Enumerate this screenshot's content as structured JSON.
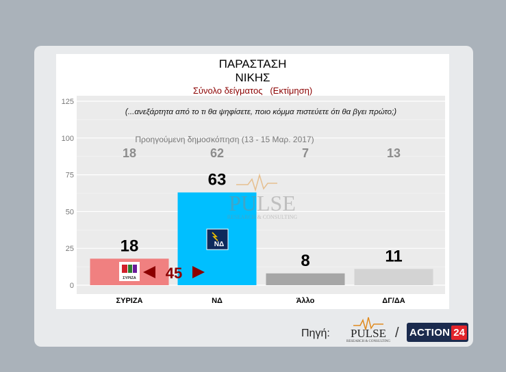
{
  "header": {
    "title_line1": "ΠΑΡΑΣΤΑΣΗ",
    "title_line2": "ΝΙΚΗΣ",
    "subtitle": "Σύνολο δείγματος   (Εκτίμηση)"
  },
  "chart_data": {
    "type": "bar",
    "question": "(...ανεξάρτητα από το τι θα ψηφίσετε, ποιο κόμμα πιστεύετε ότι θα βγει πρώτο;)",
    "previous_label": "Προηγούμενη δημοσκόπηση (13 - 15 Μαρ. 2017)",
    "categories": [
      "ΣΥΡΙΖΑ",
      "ΝΔ",
      "Άλλο",
      "ΔΓ/ΔΑ"
    ],
    "values": [
      18,
      63,
      8,
      11
    ],
    "previous_values": [
      18,
      62,
      7,
      13
    ],
    "bar_colors": [
      "#f08080",
      "#00bfff",
      "#a6a6a6",
      "#d3d3d3"
    ],
    "ylim": [
      0,
      125
    ],
    "yticks": [
      0,
      25,
      50,
      75,
      100,
      125
    ],
    "grid": true,
    "gap_annotation": "45",
    "gap_color": "#8b0000",
    "party_logos": {
      "ΣΥΡΙΖΑ": "ΣΥΡΙΖΑ",
      "ΝΔ": "ΝΔ"
    }
  },
  "watermark": {
    "brand": "PULSE",
    "tagline": "RESEARCH & CONSULTING"
  },
  "footer": {
    "source_label": "Πηγή:",
    "separator": "/",
    "action_text": "ACTION",
    "action_num": "24"
  }
}
